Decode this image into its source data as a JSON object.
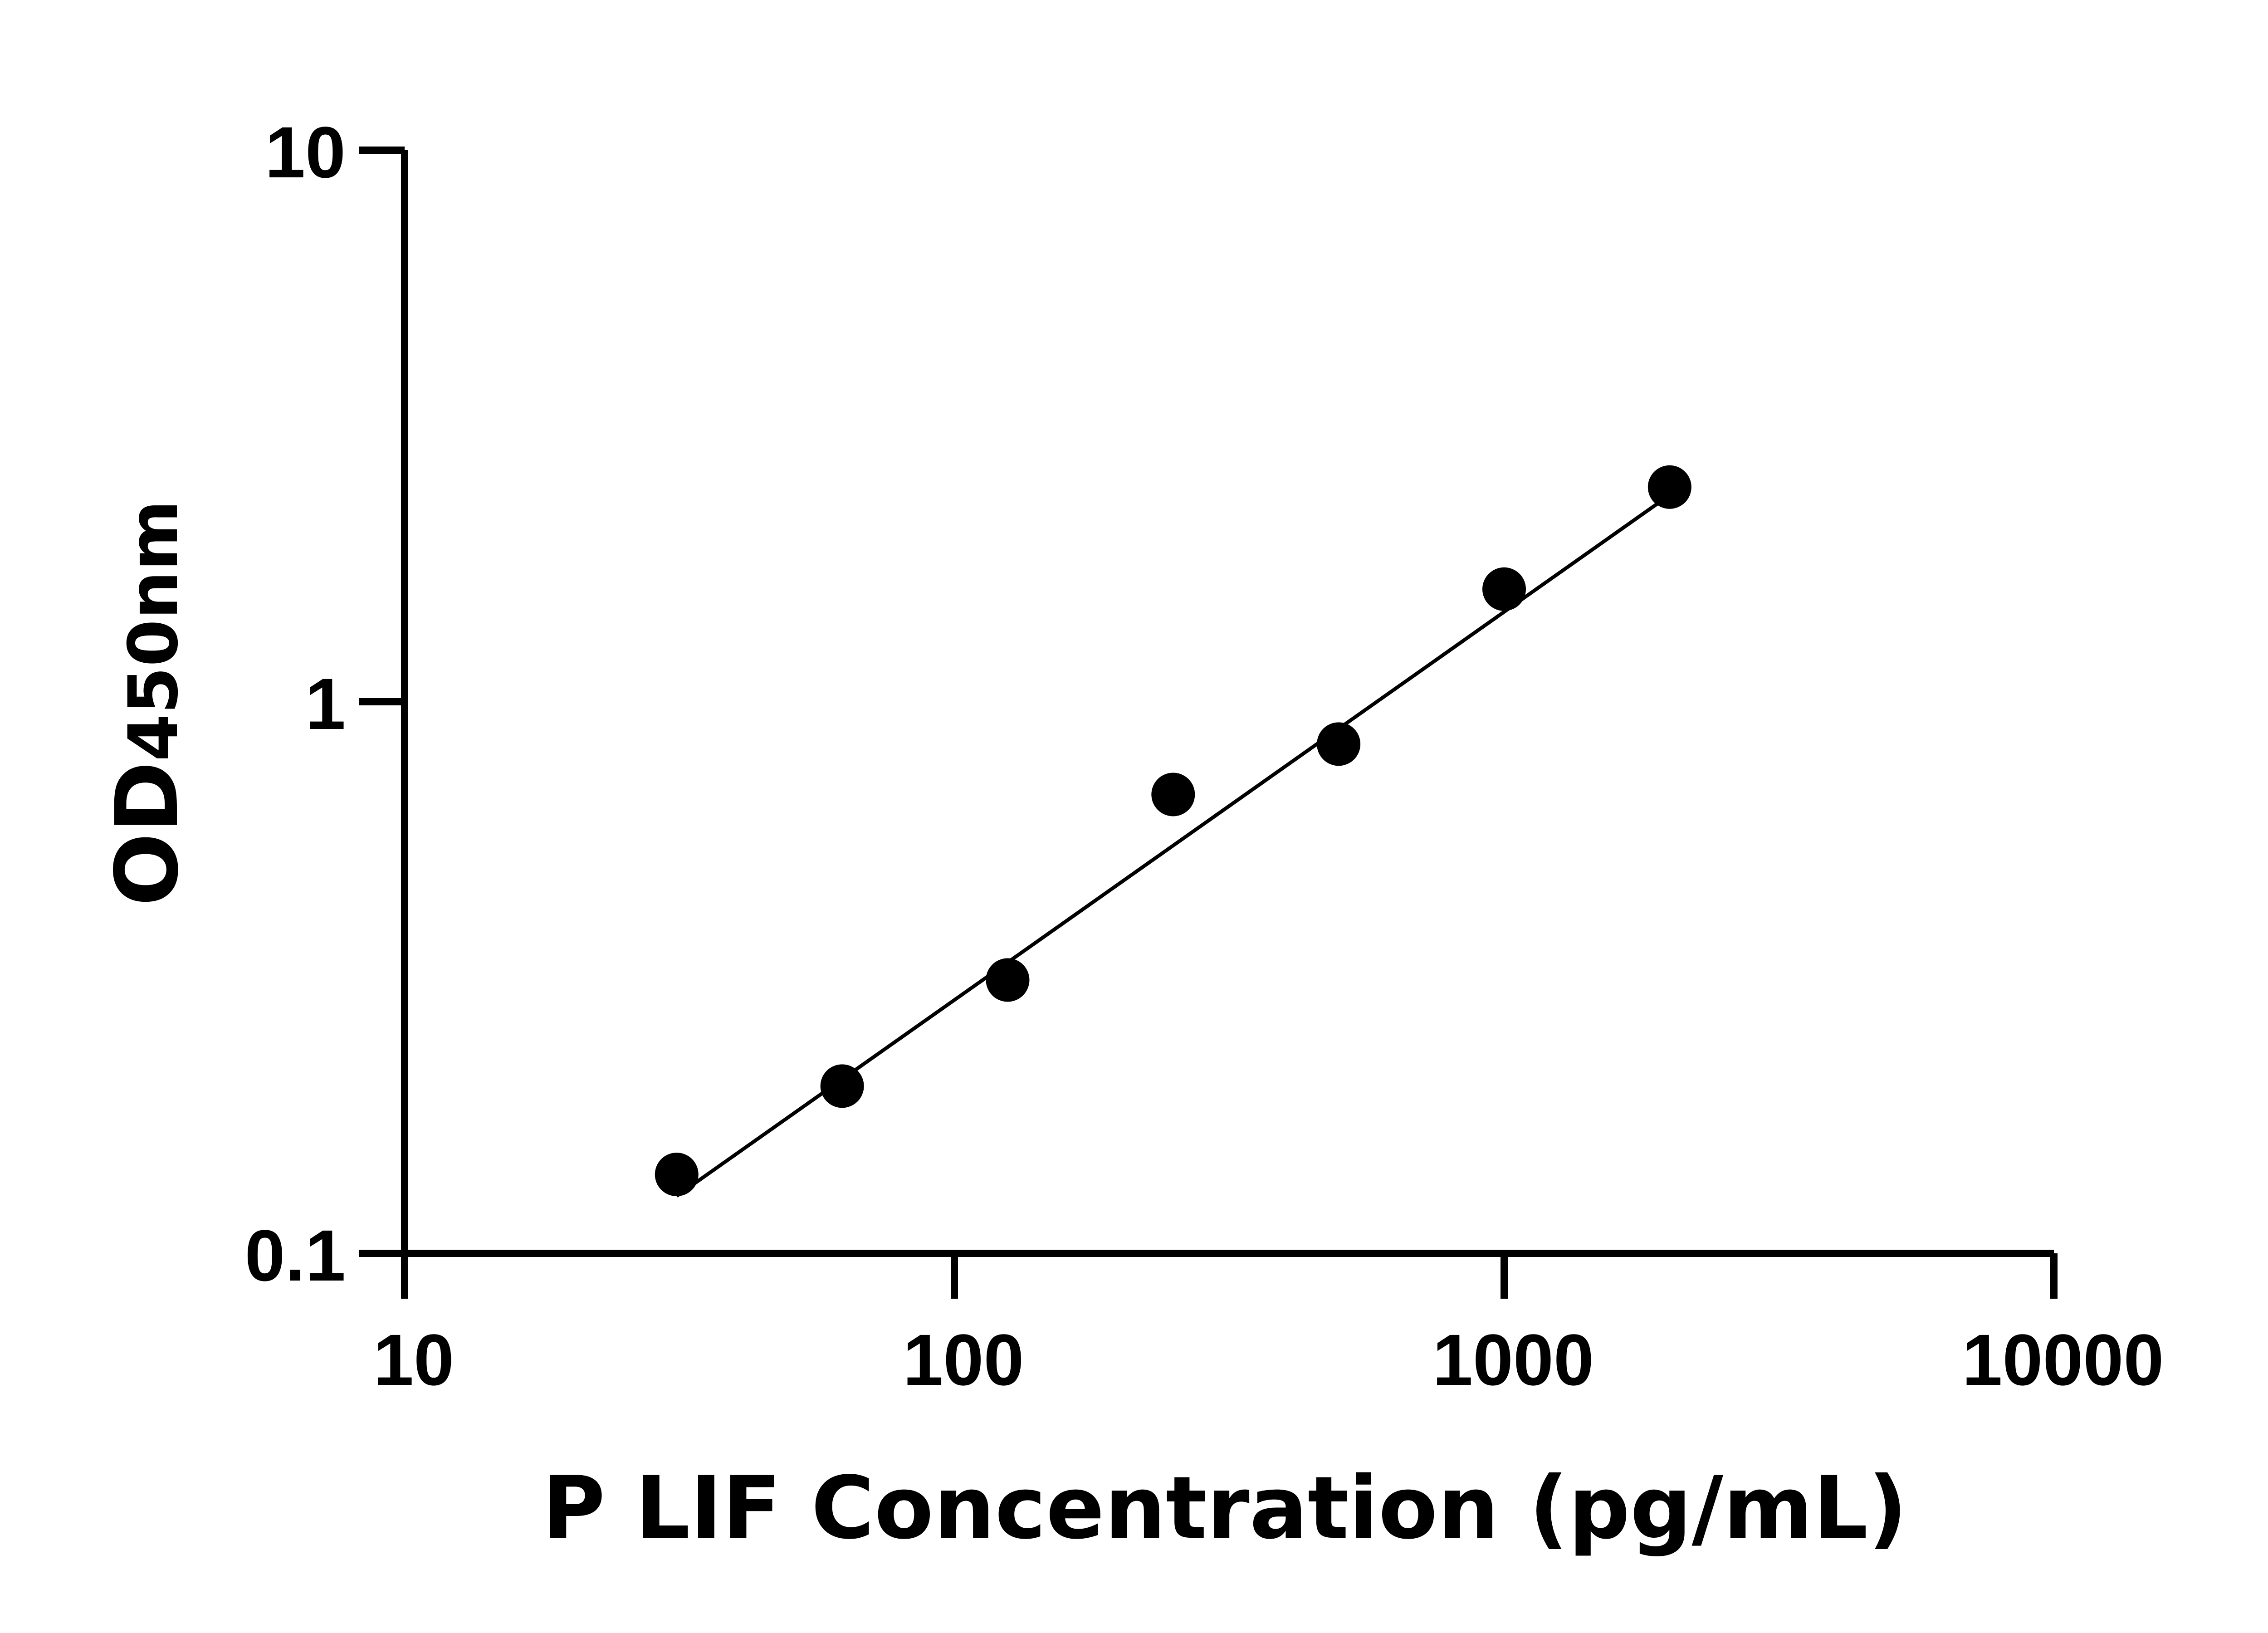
{
  "chart_data": {
    "type": "scatter",
    "title": "",
    "xlabel": "P LIF Concentration (pg/mL)",
    "ylabel_main": "OD",
    "ylabel_sub": "450nm",
    "x_scale": "log",
    "y_scale": "log",
    "xlim": [
      10,
      10000
    ],
    "ylim": [
      0.1,
      10
    ],
    "x_ticks": [
      "10",
      "100",
      "1000",
      "10000"
    ],
    "y_ticks": [
      "0.1",
      "1",
      "10"
    ],
    "grid": false,
    "legend": "none",
    "marker_color": "#000000",
    "points": [
      {
        "x": 31.25,
        "y": 0.139
      },
      {
        "x": 62.5,
        "y": 0.201
      },
      {
        "x": 125,
        "y": 0.313
      },
      {
        "x": 250,
        "y": 0.679
      },
      {
        "x": 500,
        "y": 0.838
      },
      {
        "x": 1000,
        "y": 1.6
      },
      {
        "x": 2000,
        "y": 2.45
      }
    ],
    "fit_line": [
      {
        "x": 31.25,
        "y": 0.127
      },
      {
        "x": 2000,
        "y": 2.37
      }
    ]
  }
}
